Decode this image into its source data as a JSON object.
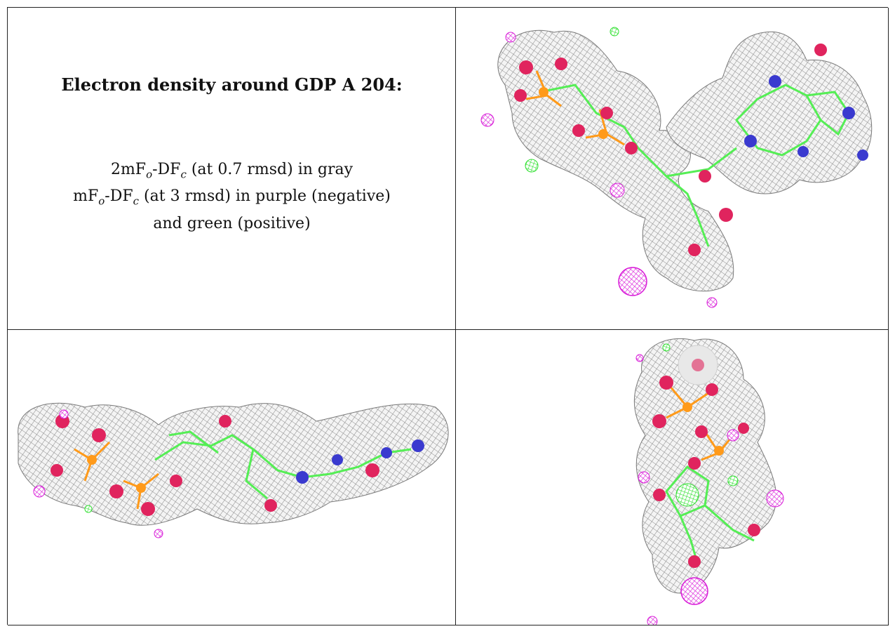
{
  "caption": {
    "title": "Electron density around GDP A 204:",
    "line1": {
      "prefix": "2mF",
      "sub1": "o",
      "mid": "-DF",
      "sub2": "c",
      "rest": " (at 0.7 rmsd) in gray"
    },
    "line2": {
      "prefix": "mF",
      "sub1": "o",
      "mid": "-DF",
      "sub2": "c",
      "rest": " (at 3 rmsd) in purple (negative)"
    },
    "line3": "and green (positive)"
  },
  "colors": {
    "density_2fofc": "#9a9a9a",
    "density_negative": "#d81ad8",
    "density_positive": "#2ee02e",
    "carbon_bond": "#55ee55",
    "phosphorus": "#ff9a1a",
    "oxygen": "#e0245e",
    "nitrogen": "#3a3acf"
  },
  "panels": [
    {
      "name": "view-top-right",
      "icon": "gdp-density-view-1-icon"
    },
    {
      "name": "view-bottom-left",
      "icon": "gdp-density-view-2-icon"
    },
    {
      "name": "view-bottom-right",
      "icon": "gdp-density-view-3-icon"
    }
  ]
}
